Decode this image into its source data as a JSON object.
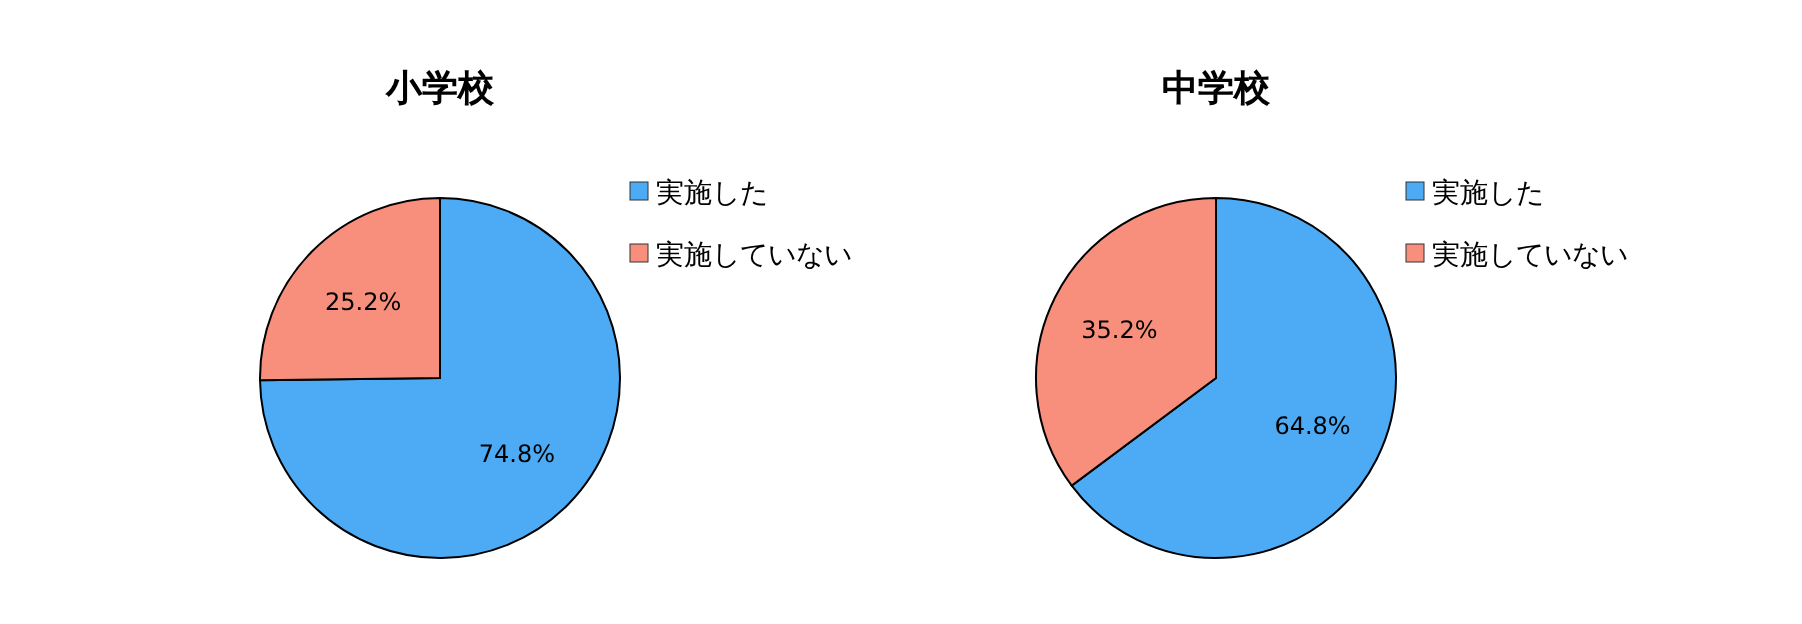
{
  "chart_data": [
    {
      "type": "pie",
      "title": "小学校",
      "categories": [
        "実施した",
        "実施していない"
      ],
      "values": [
        74.8,
        25.2
      ],
      "colors": [
        "#4dabf5",
        "#f88f7d"
      ],
      "value_labels": [
        "74.8%",
        "25.2%"
      ],
      "legend": "top right"
    },
    {
      "type": "pie",
      "title": "中学校",
      "categories": [
        "実施した",
        "実施していない"
      ],
      "values": [
        64.8,
        35.2
      ],
      "colors": [
        "#4dabf5",
        "#f88f7d"
      ],
      "value_labels": [
        "64.8%",
        "35.2%"
      ],
      "legend": "top right"
    }
  ]
}
